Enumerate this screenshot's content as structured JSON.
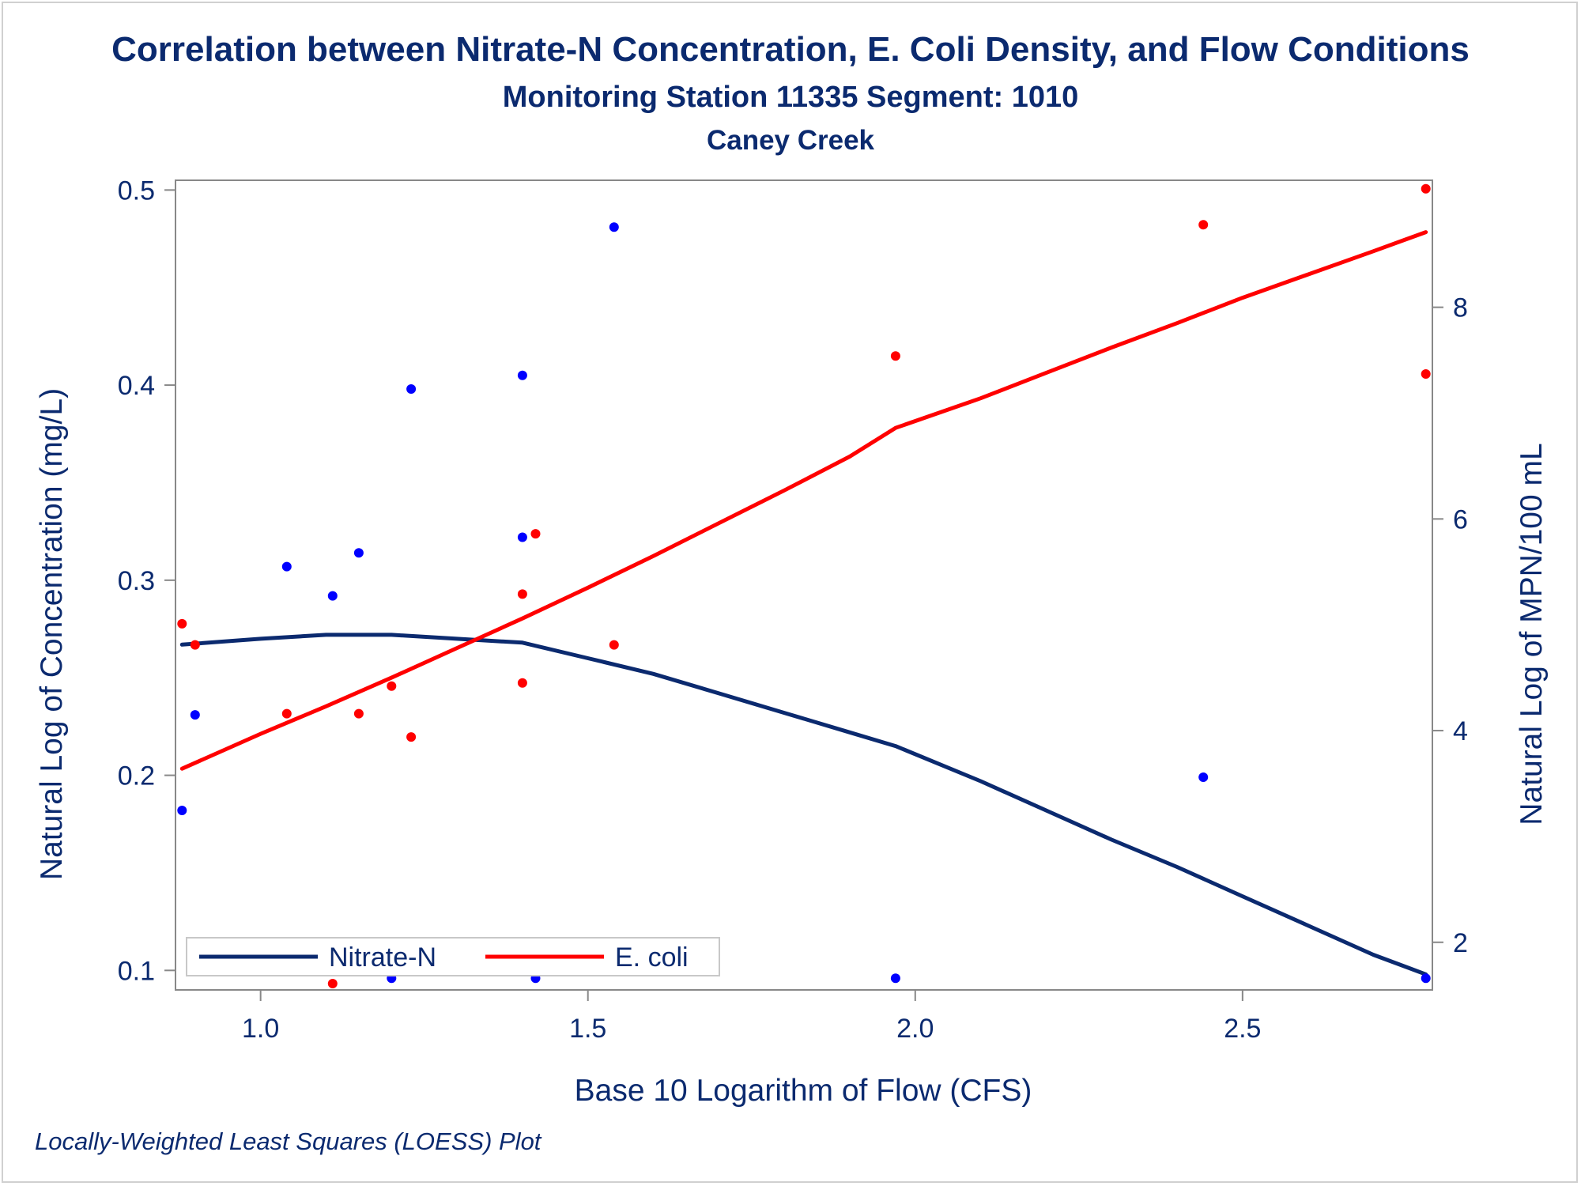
{
  "titles": {
    "main": "Correlation between Nitrate-N Concentration, E. Coli Density, and Flow Conditions",
    "sub": "Monitoring Station 11335 Segment: 1010",
    "sub2": "Caney Creek"
  },
  "footnote": "Locally-Weighted Least Squares (LOESS) Plot",
  "colors": {
    "text": "#0b2a6f",
    "nitrate": "#0b2a6f",
    "nitrate_points": "#0000ff",
    "ecoli": "#ff0000",
    "axis": "#888888"
  },
  "chart_data": {
    "type": "scatter",
    "xlabel": "Base 10 Logarithm of Flow (CFS)",
    "ylabel_left": "Natural Log of Concentration (mg/L)",
    "ylabel_right": "Natural Log of MPN/100 mL",
    "xlim": [
      0.87,
      2.79
    ],
    "ylim_left": [
      0.09,
      0.505
    ],
    "ylim_right": [
      1.55,
      9.2
    ],
    "x_ticks": [
      "1.0",
      "1.5",
      "2.0",
      "2.5"
    ],
    "y_left_ticks": [
      "0.1",
      "0.2",
      "0.3",
      "0.4",
      "0.5"
    ],
    "y_right_ticks": [
      "2",
      "4",
      "6",
      "8"
    ],
    "grid": false,
    "legend_position": "bottom-left",
    "legend": [
      "Nitrate-N",
      "E. coli"
    ],
    "series": [
      {
        "name": "Nitrate-N",
        "axis": "left",
        "points": [
          [
            0.88,
            0.182
          ],
          [
            0.9,
            0.231
          ],
          [
            1.04,
            0.307
          ],
          [
            1.11,
            0.292
          ],
          [
            1.15,
            0.314
          ],
          [
            1.2,
            0.096
          ],
          [
            1.23,
            0.398
          ],
          [
            1.4,
            0.405
          ],
          [
            1.4,
            0.322
          ],
          [
            1.42,
            0.096
          ],
          [
            1.54,
            0.481
          ],
          [
            1.97,
            0.096
          ],
          [
            2.44,
            0.199
          ],
          [
            2.78,
            0.096
          ]
        ],
        "loess": [
          [
            0.88,
            0.267
          ],
          [
            1.0,
            0.27
          ],
          [
            1.1,
            0.272
          ],
          [
            1.2,
            0.272
          ],
          [
            1.3,
            0.27
          ],
          [
            1.4,
            0.268
          ],
          [
            1.5,
            0.26
          ],
          [
            1.6,
            0.252
          ],
          [
            1.7,
            0.242
          ],
          [
            1.8,
            0.232
          ],
          [
            1.9,
            0.222
          ],
          [
            1.97,
            0.215
          ],
          [
            2.1,
            0.197
          ],
          [
            2.2,
            0.182
          ],
          [
            2.3,
            0.167
          ],
          [
            2.4,
            0.153
          ],
          [
            2.5,
            0.138
          ],
          [
            2.6,
            0.123
          ],
          [
            2.7,
            0.108
          ],
          [
            2.78,
            0.098
          ]
        ]
      },
      {
        "name": "E. coli",
        "axis": "right",
        "points": [
          [
            0.88,
            5.01
          ],
          [
            0.9,
            4.81
          ],
          [
            1.04,
            4.16
          ],
          [
            1.11,
            1.61
          ],
          [
            1.15,
            4.16
          ],
          [
            1.2,
            4.42
          ],
          [
            1.23,
            3.94
          ],
          [
            1.4,
            5.29
          ],
          [
            1.4,
            4.45
          ],
          [
            1.42,
            5.86
          ],
          [
            1.54,
            4.81
          ],
          [
            1.97,
            7.54
          ],
          [
            2.44,
            8.78
          ],
          [
            2.78,
            9.12
          ],
          [
            2.78,
            7.37
          ]
        ],
        "loess": [
          [
            0.88,
            3.64
          ],
          [
            1.0,
            3.97
          ],
          [
            1.1,
            4.23
          ],
          [
            1.2,
            4.5
          ],
          [
            1.3,
            4.78
          ],
          [
            1.4,
            5.06
          ],
          [
            1.5,
            5.35
          ],
          [
            1.6,
            5.65
          ],
          [
            1.7,
            5.96
          ],
          [
            1.8,
            6.27
          ],
          [
            1.9,
            6.59
          ],
          [
            1.97,
            6.86
          ],
          [
            2.1,
            7.14
          ],
          [
            2.2,
            7.38
          ],
          [
            2.3,
            7.62
          ],
          [
            2.4,
            7.85
          ],
          [
            2.5,
            8.09
          ],
          [
            2.6,
            8.31
          ],
          [
            2.7,
            8.53
          ],
          [
            2.78,
            8.71
          ]
        ]
      }
    ]
  }
}
